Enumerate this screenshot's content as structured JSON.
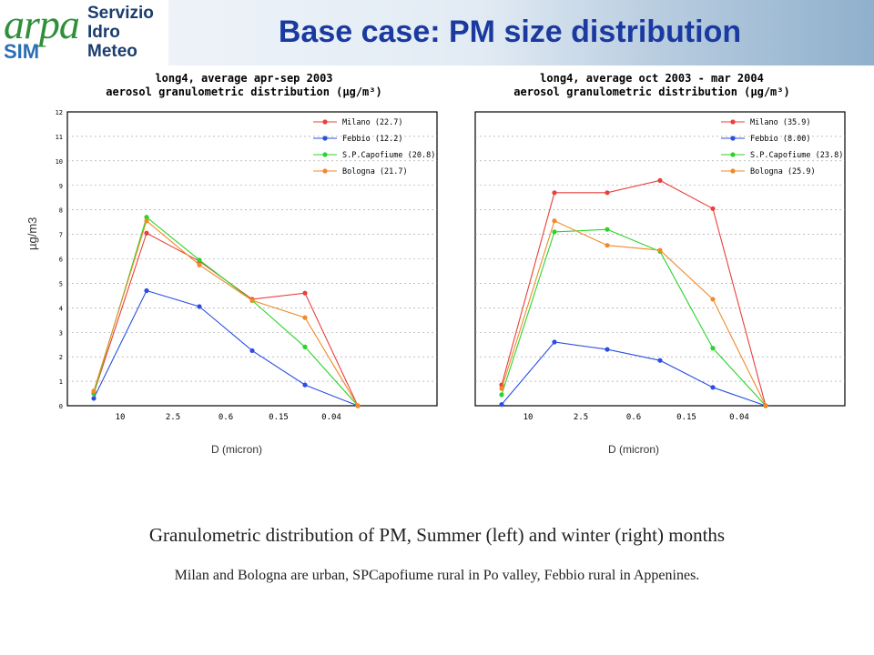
{
  "header": {
    "logo_text": "arpa",
    "logo_sub": "SIM",
    "logo_lines": [
      "Servizio",
      "Idro",
      "Meteo"
    ],
    "title": "Base case: PM size distribution"
  },
  "caption": "Granulometric distribution of PM, Summer (left) and winter (right) months",
  "subcaption": "Milan and Bologna are urban, SPCapofiume rural in Po valley, Febbio rural in Appenines.",
  "chart_data": [
    {
      "type": "line",
      "title_line1": "long4, average apr-sep 2003",
      "title_line2": "aerosol granulometric distribution (µg/m³)",
      "xlabel": "D (micron)",
      "ylabel": "µg/m3",
      "ylim": [
        0,
        12
      ],
      "y_ticks": [
        "0",
        "1",
        "2",
        "3",
        "4",
        "5",
        "6",
        "7",
        "8",
        "9",
        "10",
        "11",
        "12"
      ],
      "x_tick_labels": [
        "10",
        "2.5",
        "0.6",
        "0.15",
        "0.04"
      ],
      "grid": true,
      "legend_position": "top-right",
      "x_count": 7,
      "series": [
        {
          "name": "Milano (22.7)",
          "color": "#e8403a",
          "values": [
            0.5,
            7.05,
            5.9,
            4.35,
            4.6,
            0.0,
            null
          ]
        },
        {
          "name": "Febbio (12.2)",
          "color": "#2a4fe0",
          "values": [
            0.3,
            4.7,
            4.05,
            2.25,
            0.85,
            0.0,
            null
          ]
        },
        {
          "name": "S.P.Capofiume (20.8)",
          "color": "#2ad42a",
          "values": [
            0.5,
            7.7,
            5.95,
            4.3,
            2.4,
            0.0,
            null
          ]
        },
        {
          "name": "Bologna (21.7)",
          "color": "#f08a2a",
          "values": [
            0.6,
            7.55,
            5.75,
            4.3,
            3.6,
            0.0,
            null
          ]
        }
      ]
    },
    {
      "type": "line",
      "title_line1": "long4, average oct 2003 - mar 2004",
      "title_line2": "aerosol granulometric distribution (µg/m³)",
      "xlabel": "D (micron)",
      "ylabel": "",
      "ylim": [
        0,
        12
      ],
      "y_ticks": [],
      "x_tick_labels": [
        "10",
        "2.5",
        "0.6",
        "0.15",
        "0.04"
      ],
      "grid": true,
      "legend_position": "top-right",
      "x_count": 7,
      "series": [
        {
          "name": "Milano (35.9)",
          "color": "#e8403a",
          "values": [
            0.85,
            8.7,
            8.7,
            9.2,
            8.05,
            0.0,
            null
          ]
        },
        {
          "name": "Febbio (8.00)",
          "color": "#2a4fe0",
          "values": [
            0.05,
            2.6,
            2.3,
            1.85,
            0.75,
            0.0,
            null
          ]
        },
        {
          "name": "S.P.Capofiume (23.8)",
          "color": "#2ad42a",
          "values": [
            0.45,
            7.1,
            7.2,
            6.3,
            2.35,
            0.0,
            null
          ]
        },
        {
          "name": "Bologna (25.9)",
          "color": "#f08a2a",
          "values": [
            0.7,
            7.55,
            6.55,
            6.35,
            4.35,
            0.0,
            null
          ]
        }
      ]
    }
  ]
}
